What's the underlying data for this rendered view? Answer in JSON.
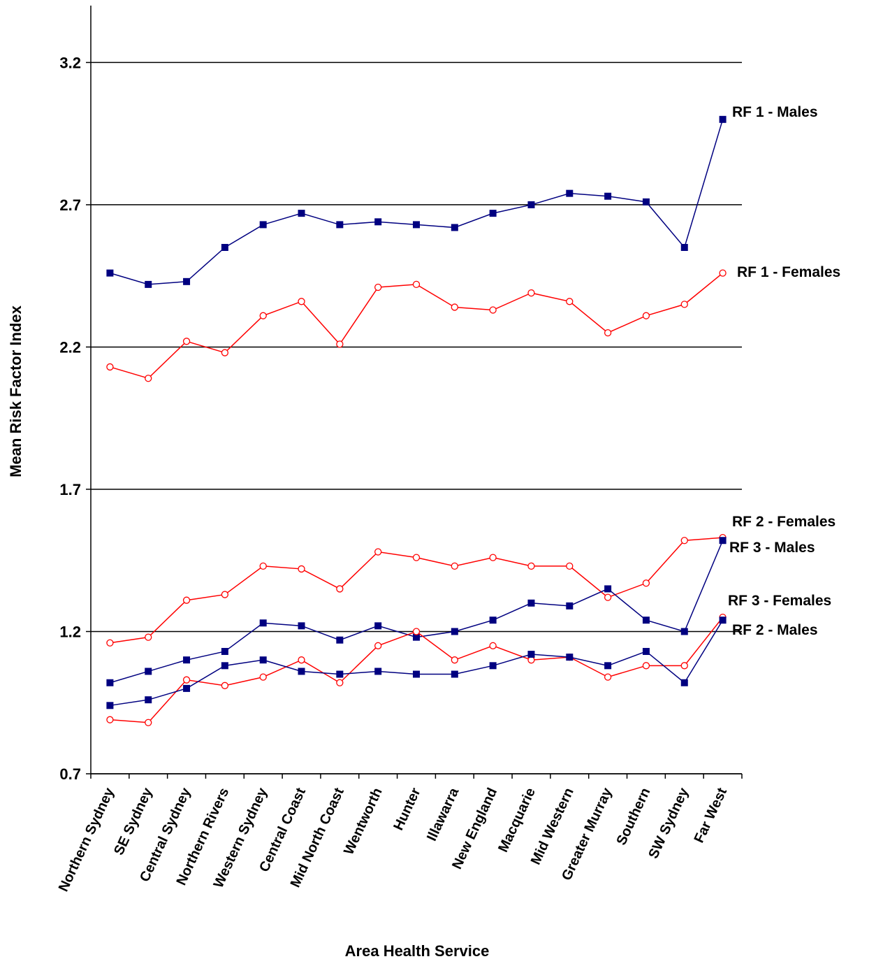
{
  "chart_data": {
    "type": "line",
    "x_label": "Area Health Service",
    "y_label": "Mean Risk Factor Index",
    "categories": [
      "Northern Sydney",
      "SE Sydney",
      "Central Sydney",
      "Northern Rivers",
      "Western Sydney",
      "Central Coast",
      "Mid North Coast",
      "Wentworth",
      "Hunter",
      "Illawarra",
      "New England",
      "Macquarie",
      "Mid Western",
      "Greater Murray",
      "Southern",
      "SW Sydney",
      "Far West"
    ],
    "ylim": [
      0.7,
      3.4
    ],
    "yticks": [
      0.7,
      1.2,
      1.7,
      2.2,
      2.7,
      3.2
    ],
    "grid": true,
    "series": [
      {
        "name": "RF 1 - Males",
        "color": "#000080",
        "marker": "square",
        "values": [
          2.46,
          2.42,
          2.43,
          2.55,
          2.63,
          2.67,
          2.63,
          2.64,
          2.63,
          2.62,
          2.67,
          2.7,
          2.74,
          2.73,
          2.71,
          2.55,
          3.0
        ]
      },
      {
        "name": "RF 1 - Females",
        "color": "#ff0000",
        "marker": "circle",
        "values": [
          2.13,
          2.09,
          2.22,
          2.18,
          2.31,
          2.36,
          2.21,
          2.41,
          2.42,
          2.34,
          2.33,
          2.39,
          2.36,
          2.25,
          2.31,
          2.35,
          2.46
        ]
      },
      {
        "name": "RF 2 - Females",
        "color": "#ff0000",
        "marker": "circle",
        "values": [
          1.16,
          1.18,
          1.31,
          1.33,
          1.43,
          1.42,
          1.35,
          1.48,
          1.46,
          1.43,
          1.46,
          1.43,
          1.43,
          1.32,
          1.37,
          1.52,
          1.53
        ]
      },
      {
        "name": "RF 3 - Males",
        "color": "#000080",
        "marker": "square",
        "values": [
          1.02,
          1.06,
          1.1,
          1.13,
          1.23,
          1.22,
          1.17,
          1.22,
          1.18,
          1.2,
          1.24,
          1.3,
          1.29,
          1.35,
          1.24,
          1.2,
          1.52
        ]
      },
      {
        "name": "RF 3 - Females",
        "color": "#ff0000",
        "marker": "circle",
        "values": [
          0.89,
          0.88,
          1.03,
          1.01,
          1.04,
          1.1,
          1.02,
          1.15,
          1.2,
          1.1,
          1.15,
          1.1,
          1.11,
          1.04,
          1.08,
          1.08,
          1.25
        ]
      },
      {
        "name": "RF 2 - Males",
        "color": "#000080",
        "marker": "square",
        "values": [
          0.94,
          0.96,
          1.0,
          1.08,
          1.1,
          1.06,
          1.05,
          1.06,
          1.05,
          1.05,
          1.08,
          1.12,
          1.11,
          1.08,
          1.13,
          1.02,
          1.24
        ]
      }
    ]
  }
}
